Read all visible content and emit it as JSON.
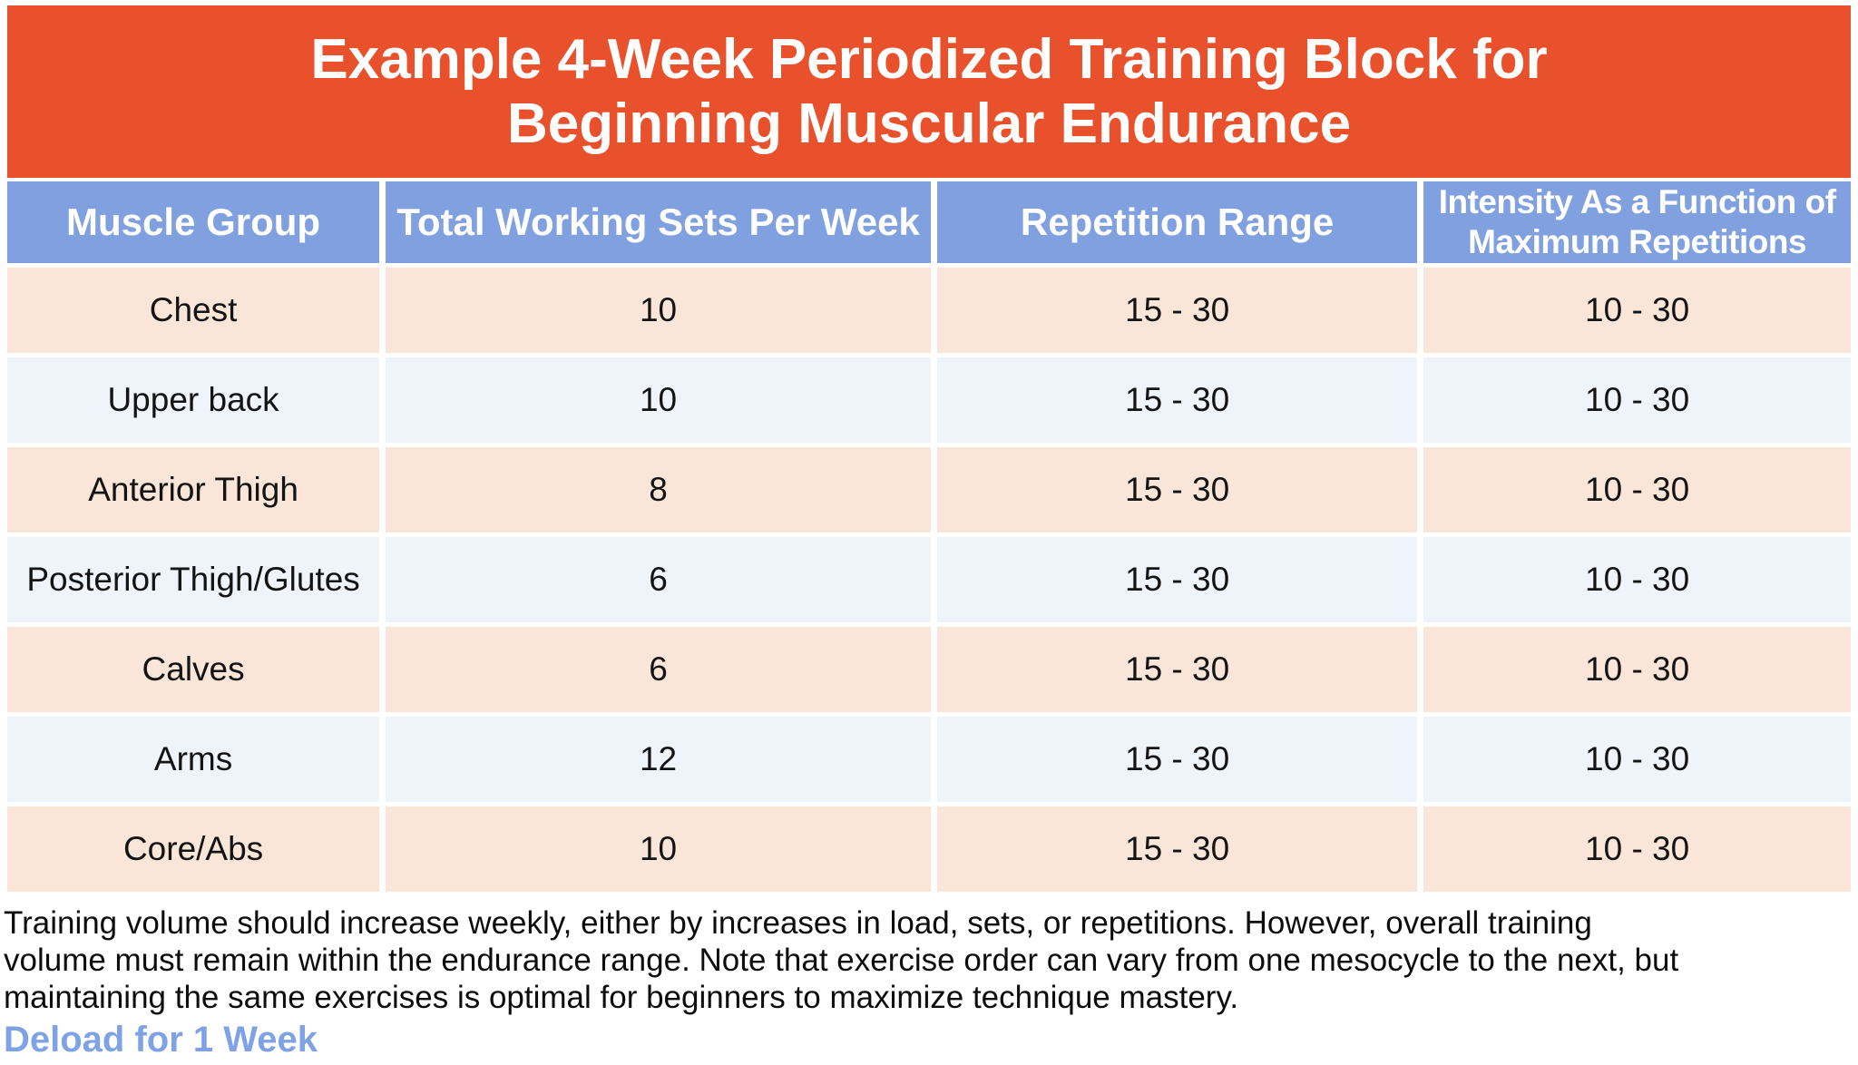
{
  "header": {
    "title_display": "Example 4-Week Periodized Training Block for\nBeginning Muscular Endurance"
  },
  "chart_data": {
    "type": "table",
    "title": "Example 4-Week Periodized Training Block for Beginning Muscular Endurance",
    "columns": [
      "Muscle Group",
      "Total Working Sets Per Week",
      "Repetition Range",
      "Intensity As a Function of\nMaximum Repetitions"
    ],
    "rows": [
      {
        "muscle_group": "Chest",
        "sets": 10,
        "repetition_range": "15 - 30",
        "intensity": "10 - 30"
      },
      {
        "muscle_group": "Upper back",
        "sets": 10,
        "repetition_range": "15 - 30",
        "intensity": "10 - 30"
      },
      {
        "muscle_group": "Anterior Thigh",
        "sets": 8,
        "repetition_range": "15 - 30",
        "intensity": "10 - 30"
      },
      {
        "muscle_group": "Posterior Thigh/Glutes",
        "sets": 6,
        "repetition_range": "15 - 30",
        "intensity": "10 - 30"
      },
      {
        "muscle_group": "Calves",
        "sets": 6,
        "repetition_range": "15 - 30",
        "intensity": "10 - 30"
      },
      {
        "muscle_group": "Arms",
        "sets": 12,
        "repetition_range": "15 - 30",
        "intensity": "10 - 30"
      },
      {
        "muscle_group": "Core/Abs",
        "sets": 10,
        "repetition_range": "15 - 30",
        "intensity": "10 - 30"
      }
    ]
  },
  "footer": {
    "note": "Training volume should increase weekly, either by increases in load, sets, or repetitions. However, overall training\nvolume must remain within the endurance range. Note that exercise order can vary from one mesocycle to the next, but\nmaintaining the same exercises is optimal for beginners to maximize technique mastery.",
    "deload_label": "Deload for 1 Week"
  },
  "colors": {
    "banner_orange": "#E8512B",
    "column_header_blue": "#81A0E0",
    "row_peach": "#FAE6D9",
    "row_light_blue": "#EFF3FA",
    "deload_blue": "#7FA2E5",
    "body_text": "#141414"
  }
}
